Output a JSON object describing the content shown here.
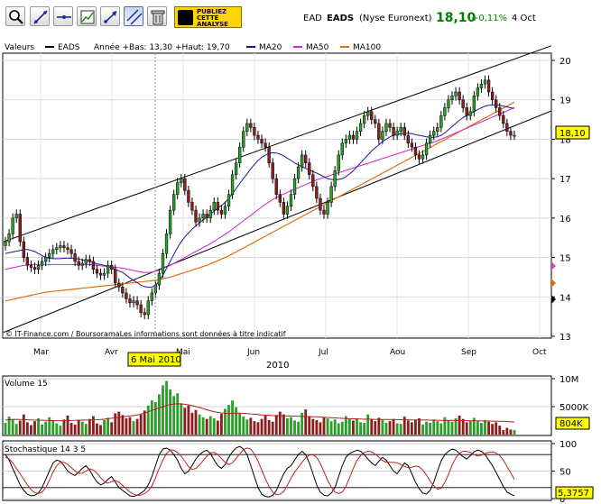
{
  "toolbar": {
    "buttons": [
      {
        "name": "zoom-icon",
        "active": false
      },
      {
        "name": "draw-line-icon",
        "active": false
      },
      {
        "name": "horizontal-line-icon",
        "active": false
      },
      {
        "name": "indicator-icon",
        "active": false
      },
      {
        "name": "trend-arrow-icon",
        "active": false
      },
      {
        "name": "channel-icon",
        "active": true
      },
      {
        "name": "trash-icon",
        "active": false
      }
    ],
    "publish_line1": "PUBLIEZ",
    "publish_line2": "CETTE",
    "publish_line3": "ANALYSE"
  },
  "quote": {
    "code": "EAD",
    "name": "EADS",
    "market": "(Nyse Euronext)",
    "price": "18,10",
    "change": "+0,11%",
    "date": "4 Oct"
  },
  "colors": {
    "price_green": "#008000",
    "bull": "#2aa02a",
    "bear": "#8b1f1f",
    "ma20": "#1a1a9a",
    "ma50": "#d020d0",
    "ma100": "#e07010",
    "marker_yellow": "#ffff00"
  },
  "chart_data": [
    {
      "type": "candlestick",
      "legend": {
        "valeurs": "Valeurs",
        "series": "EADS",
        "stats": "Année +Bas: 13,30 +Haut: 19,70",
        "ma20": "MA20",
        "ma50": "MA50",
        "ma100": "MA100"
      },
      "y_ticks": [
        "20",
        "19",
        "18",
        "17",
        "16",
        "15",
        "14",
        "13"
      ],
      "ylim": [
        13,
        20
      ],
      "last_price_label": "18,10",
      "x_ticks": [
        "Mar",
        "Avr",
        "Mai",
        "Jun",
        "Jul",
        "Aou",
        "Sep",
        "Oct"
      ],
      "year": "2010",
      "cursor_label": "6 Mai 2010",
      "copyright": "© IT-Finance.com / BoursoramaLes informations sont données à titre indicatif",
      "close": [
        15.4,
        15.6,
        16.0,
        16.1,
        15.4,
        15.0,
        14.8,
        14.75,
        14.7,
        14.8,
        14.9,
        15.0,
        15.1,
        15.2,
        15.25,
        15.3,
        15.25,
        15.2,
        15.1,
        14.9,
        14.8,
        14.85,
        14.95,
        14.9,
        14.7,
        14.6,
        14.55,
        14.6,
        14.8,
        14.7,
        14.35,
        14.25,
        14.1,
        13.95,
        13.85,
        13.9,
        13.8,
        13.6,
        13.55,
        13.9,
        14.1,
        14.3,
        14.6,
        15.1,
        15.6,
        16.2,
        16.6,
        16.9,
        17.0,
        16.7,
        16.4,
        16.2,
        15.9,
        16.0,
        16.1,
        16.0,
        16.2,
        16.4,
        16.2,
        16.1,
        16.3,
        16.6,
        17.1,
        17.4,
        17.8,
        18.2,
        18.4,
        18.3,
        18.1,
        18.0,
        17.9,
        17.8,
        17.4,
        17.0,
        16.6,
        16.4,
        16.1,
        16.3,
        16.6,
        17.0,
        17.3,
        17.6,
        17.4,
        17.1,
        16.8,
        16.5,
        16.2,
        16.1,
        16.4,
        16.8,
        17.2,
        17.6,
        17.9,
        18.0,
        18.1,
        18.0,
        18.2,
        18.4,
        18.6,
        18.7,
        18.5,
        18.4,
        18.0,
        18.2,
        18.4,
        18.3,
        18.1,
        18.2,
        18.3,
        18.1,
        17.9,
        17.8,
        17.6,
        17.5,
        17.6,
        17.9,
        18.1,
        18.2,
        18.3,
        18.6,
        18.8,
        19.0,
        19.1,
        19.2,
        19.0,
        18.8,
        18.6,
        18.7,
        19.1,
        19.3,
        19.4,
        19.5,
        19.2,
        19.0,
        18.8,
        18.6,
        18.4,
        18.2,
        18.1,
        18.1
      ],
      "ma20": [
        15.1,
        15.12,
        15.14,
        15.16,
        15.18,
        15.2,
        15.2,
        15.18,
        15.15,
        15.1,
        15.05,
        15.0,
        14.98,
        14.97,
        14.97,
        14.97,
        14.98,
        14.98,
        14.98,
        14.97,
        14.96,
        14.94,
        14.92,
        14.9,
        14.87,
        14.84,
        14.82,
        14.8,
        14.77,
        14.74,
        14.7,
        14.66,
        14.62,
        14.55,
        14.48,
        14.42,
        14.36,
        14.3,
        14.26,
        14.24,
        14.25,
        14.3,
        14.4,
        14.55,
        14.72,
        14.9,
        15.08,
        15.25,
        15.4,
        15.52,
        15.62,
        15.72,
        15.8,
        15.88,
        15.95,
        16.02,
        16.1,
        16.18,
        16.25,
        16.32,
        16.4,
        16.5,
        16.62,
        16.75,
        16.88,
        17.0,
        17.12,
        17.25,
        17.36,
        17.46,
        17.54,
        17.6,
        17.64,
        17.66,
        17.65,
        17.62,
        17.58,
        17.52,
        17.46,
        17.4,
        17.35,
        17.3,
        17.26,
        17.22,
        17.18,
        17.14,
        17.1,
        17.05,
        17.0,
        16.98,
        16.97,
        16.98,
        17.0,
        17.05,
        17.12,
        17.2,
        17.3,
        17.4,
        17.5,
        17.6,
        17.7,
        17.78,
        17.86,
        17.94,
        18.0,
        18.06,
        18.1,
        18.12,
        18.14,
        18.15,
        18.15,
        18.14,
        18.12,
        18.1,
        18.08,
        18.06,
        18.05,
        18.05,
        18.06,
        18.1,
        18.16,
        18.24,
        18.32,
        18.4,
        18.48,
        18.55,
        18.6,
        18.65,
        18.7,
        18.75,
        18.8,
        18.84,
        18.86,
        18.87,
        18.87,
        18.86,
        18.84,
        18.82,
        18.8,
        18.78
      ],
      "ma50": [
        14.7,
        14.72,
        14.74,
        14.76,
        14.78,
        14.8,
        14.81,
        14.82,
        14.82,
        14.82,
        14.82,
        14.82,
        14.82,
        14.82,
        14.82,
        14.82,
        14.82,
        14.82,
        14.82,
        14.82,
        14.82,
        14.82,
        14.82,
        14.82,
        14.81,
        14.8,
        14.79,
        14.78,
        14.77,
        14.76,
        14.75,
        14.74,
        14.73,
        14.71,
        14.69,
        14.67,
        14.65,
        14.63,
        14.62,
        14.62,
        14.63,
        14.65,
        14.68,
        14.72,
        14.76,
        14.8,
        14.85,
        14.9,
        14.95,
        15.0,
        15.05,
        15.1,
        15.15,
        15.2,
        15.25,
        15.3,
        15.35,
        15.41,
        15.47,
        15.53,
        15.59,
        15.65,
        15.72,
        15.79,
        15.86,
        15.93,
        16.0,
        16.07,
        16.14,
        16.21,
        16.28,
        16.35,
        16.41,
        16.47,
        16.52,
        16.57,
        16.61,
        16.65,
        16.69,
        16.73,
        16.77,
        16.81,
        16.85,
        16.89,
        16.93,
        16.97,
        17.0,
        17.03,
        17.06,
        17.09,
        17.12,
        17.15,
        17.18,
        17.21,
        17.24,
        17.27,
        17.3,
        17.33,
        17.36,
        17.39,
        17.42,
        17.45,
        17.48,
        17.51,
        17.54,
        17.57,
        17.6,
        17.63,
        17.66,
        17.69,
        17.72,
        17.75,
        17.78,
        17.81,
        17.84,
        17.87,
        17.9,
        17.93,
        17.96,
        18.0,
        18.04,
        18.08,
        18.12,
        18.16,
        18.2,
        18.24,
        18.28,
        18.32,
        18.36,
        18.4,
        18.44,
        18.48,
        18.52,
        18.56,
        18.6,
        18.64,
        18.68,
        18.72,
        18.76,
        18.8
      ],
      "ma100": [
        13.9,
        13.92,
        13.94,
        13.96,
        13.98,
        14.0,
        14.02,
        14.04,
        14.06,
        14.08,
        14.1,
        14.12,
        14.13,
        14.14,
        14.15,
        14.16,
        14.17,
        14.18,
        14.19,
        14.2,
        14.21,
        14.22,
        14.23,
        14.24,
        14.25,
        14.26,
        14.27,
        14.28,
        14.29,
        14.3,
        14.31,
        14.32,
        14.33,
        14.34,
        14.35,
        14.36,
        14.37,
        14.38,
        14.39,
        14.4,
        14.41,
        14.42,
        14.44,
        14.46,
        14.48,
        14.5,
        14.53,
        14.56,
        14.59,
        14.62,
        14.65,
        14.68,
        14.71,
        14.74,
        14.77,
        14.8,
        14.84,
        14.88,
        14.92,
        14.96,
        15.0,
        15.04,
        15.09,
        15.14,
        15.19,
        15.24,
        15.29,
        15.34,
        15.39,
        15.44,
        15.49,
        15.54,
        15.59,
        15.64,
        15.69,
        15.74,
        15.79,
        15.84,
        15.89,
        15.94,
        15.99,
        16.04,
        16.09,
        16.14,
        16.19,
        16.24,
        16.29,
        16.34,
        16.39,
        16.44,
        16.49,
        16.54,
        16.59,
        16.64,
        16.69,
        16.74,
        16.79,
        16.84,
        16.89,
        16.94,
        16.99,
        17.04,
        17.09,
        17.14,
        17.19,
        17.24,
        17.29,
        17.34,
        17.39,
        17.44,
        17.49,
        17.54,
        17.59,
        17.64,
        17.69,
        17.74,
        17.79,
        17.84,
        17.89,
        17.94,
        17.99,
        18.04,
        18.09,
        18.14,
        18.19,
        18.24,
        18.29,
        18.34,
        18.39,
        18.44,
        18.49,
        18.54,
        18.59,
        18.64,
        18.69,
        18.74,
        18.79,
        18.84,
        18.89,
        18.94
      ],
      "channel_upper": [
        [
          0,
          15.4
        ],
        [
          138,
          20.0
        ]
      ],
      "channel_lower": [
        [
          0,
          13.1
        ],
        [
          138,
          18.3
        ]
      ]
    },
    {
      "type": "bar",
      "title": "Volume 15",
      "y_ticks": [
        "10M",
        "5000K"
      ],
      "last_label": "804K",
      "values_k": [
        2100,
        3200,
        2800,
        1900,
        2500,
        3600,
        2200,
        1700,
        2400,
        2900,
        1800,
        2300,
        3100,
        2600,
        2000,
        1600,
        2700,
        3400,
        2100,
        1800,
        2500,
        2300,
        1900,
        2800,
        3300,
        2000,
        1700,
        2600,
        3000,
        2200,
        3800,
        4100,
        3500,
        2900,
        3100,
        2400,
        2800,
        3600,
        4300,
        5200,
        6100,
        5800,
        7200,
        8800,
        9600,
        8100,
        6900,
        7400,
        5600,
        4800,
        5200,
        3900,
        4400,
        3600,
        3100,
        2800,
        3300,
        2900,
        2500,
        3700,
        4600,
        5300,
        6100,
        4900,
        3800,
        3200,
        2700,
        3000,
        2400,
        2200,
        2800,
        3400,
        2600,
        2300,
        3500,
        4100,
        3600,
        2900,
        3100,
        2500,
        2300,
        3900,
        4500,
        3200,
        2800,
        2600,
        2200,
        3100,
        2900,
        2400,
        2700,
        2000,
        2300,
        3300,
        2800,
        2500,
        2900,
        2200,
        2100,
        3600,
        2700,
        2400,
        3000,
        2600,
        2100,
        2400,
        2800,
        2000,
        1900,
        3200,
        2500,
        2200,
        2600,
        2900,
        1800,
        2300,
        2100,
        2700,
        2400,
        2000,
        3100,
        2600,
        2300,
        2900,
        3400,
        2800,
        2200,
        2500,
        3000,
        2400,
        2100,
        2600,
        2300,
        1900,
        2200,
        1600,
        804,
        1200,
        900,
        804
      ],
      "ma_k": [
        2600,
        2650,
        2700,
        2720,
        2700,
        2680,
        2650,
        2620,
        2600,
        2580,
        2560,
        2540,
        2520,
        2500,
        2480,
        2470,
        2480,
        2500,
        2520,
        2540,
        2560,
        2580,
        2600,
        2620,
        2640,
        2660,
        2700,
        2760,
        2840,
        2920,
        3000,
        3080,
        3160,
        3240,
        3320,
        3400,
        3520,
        3680,
        3860,
        4080,
        4320,
        4560,
        4780,
        5000,
        5200,
        5360,
        5460,
        5500,
        5480,
        5420,
        5320,
        5180,
        5020,
        4840,
        4640,
        4440,
        4260,
        4100,
        3960,
        3860,
        3800,
        3780,
        3800,
        3820,
        3820,
        3800,
        3760,
        3700,
        3640,
        3580,
        3520,
        3470,
        3430,
        3400,
        3380,
        3370,
        3360,
        3340,
        3320,
        3300,
        3280,
        3260,
        3240,
        3220,
        3200,
        3170,
        3140,
        3100,
        3060,
        3020,
        2980,
        2940,
        2900,
        2870,
        2840,
        2820,
        2800,
        2780,
        2760,
        2750,
        2740,
        2730,
        2720,
        2710,
        2700,
        2690,
        2680,
        2670,
        2660,
        2650,
        2640,
        2630,
        2620,
        2610,
        2600,
        2590,
        2580,
        2570,
        2560,
        2550,
        2540,
        2530,
        2520,
        2510,
        2500,
        2490,
        2480,
        2470,
        2460,
        2450,
        2440,
        2430,
        2420,
        2410,
        2400,
        2380,
        2350,
        2320,
        2290,
        2260
      ],
      "ylim": [
        0,
        10000
      ]
    },
    {
      "type": "line",
      "title": "Stochastique 14 3 5",
      "y_ticks": [
        "100",
        "50",
        "0"
      ],
      "last_label": "5,3757",
      "ylim": [
        0,
        100
      ],
      "series": [
        {
          "values": [
            80,
            70,
            55,
            40,
            25,
            15,
            8,
            5,
            6,
            10,
            20,
            35,
            50,
            65,
            70,
            68,
            60,
            50,
            45,
            42,
            48,
            55,
            60,
            52,
            40,
            30,
            25,
            28,
            35,
            40,
            30,
            20,
            15,
            10,
            5,
            4,
            6,
            10,
            15,
            25,
            40,
            60,
            80,
            90,
            92,
            88,
            80,
            70,
            55,
            45,
            50,
            60,
            72,
            80,
            85,
            88,
            82,
            70,
            60,
            55,
            62,
            75,
            85,
            92,
            95,
            90,
            80,
            60,
            40,
            20,
            8,
            4,
            3,
            6,
            15,
            30,
            45,
            55,
            60,
            70,
            80,
            86,
            80,
            65,
            45,
            25,
            12,
            6,
            5,
            10,
            20,
            40,
            60,
            75,
            82,
            85,
            88,
            86,
            80,
            72,
            65,
            60,
            68,
            75,
            70,
            60,
            50,
            45,
            55,
            65,
            60,
            45,
            30,
            18,
            10,
            8,
            15,
            30,
            50,
            68,
            80,
            86,
            90,
            88,
            82,
            76,
            72,
            78,
            85,
            88,
            86,
            80,
            70,
            60,
            48,
            35,
            22,
            12,
            8,
            5
          ]
        },
        {
          "values": [
            75,
            72,
            65,
            55,
            45,
            35,
            25,
            16,
            11,
            9,
            12,
            20,
            33,
            48,
            60,
            66,
            66,
            62,
            56,
            50,
            46,
            46,
            50,
            54,
            52,
            46,
            38,
            31,
            28,
            31,
            33,
            30,
            24,
            18,
            12,
            8,
            6,
            6,
            9,
            14,
            23,
            38,
            55,
            70,
            82,
            88,
            88,
            84,
            77,
            68,
            58,
            53,
            55,
            61,
            69,
            77,
            83,
            84,
            80,
            73,
            66,
            62,
            65,
            73,
            81,
            89,
            92,
            90,
            81,
            68,
            52,
            36,
            22,
            12,
            7,
            8,
            13,
            24,
            37,
            48,
            57,
            66,
            74,
            79,
            80,
            75,
            64,
            49,
            33,
            21,
            12,
            9,
            12,
            22,
            38,
            55,
            69,
            78,
            84,
            86,
            85,
            81,
            75,
            69,
            66,
            66,
            66,
            65,
            62,
            58,
            56,
            57,
            59,
            58,
            52,
            43,
            32,
            23,
            17,
            19,
            29,
            44,
            61,
            74,
            82,
            86,
            86,
            84,
            80,
            77,
            79,
            82,
            84,
            85,
            83,
            78,
            70,
            58,
            47,
            35
          ]
        }
      ]
    }
  ]
}
